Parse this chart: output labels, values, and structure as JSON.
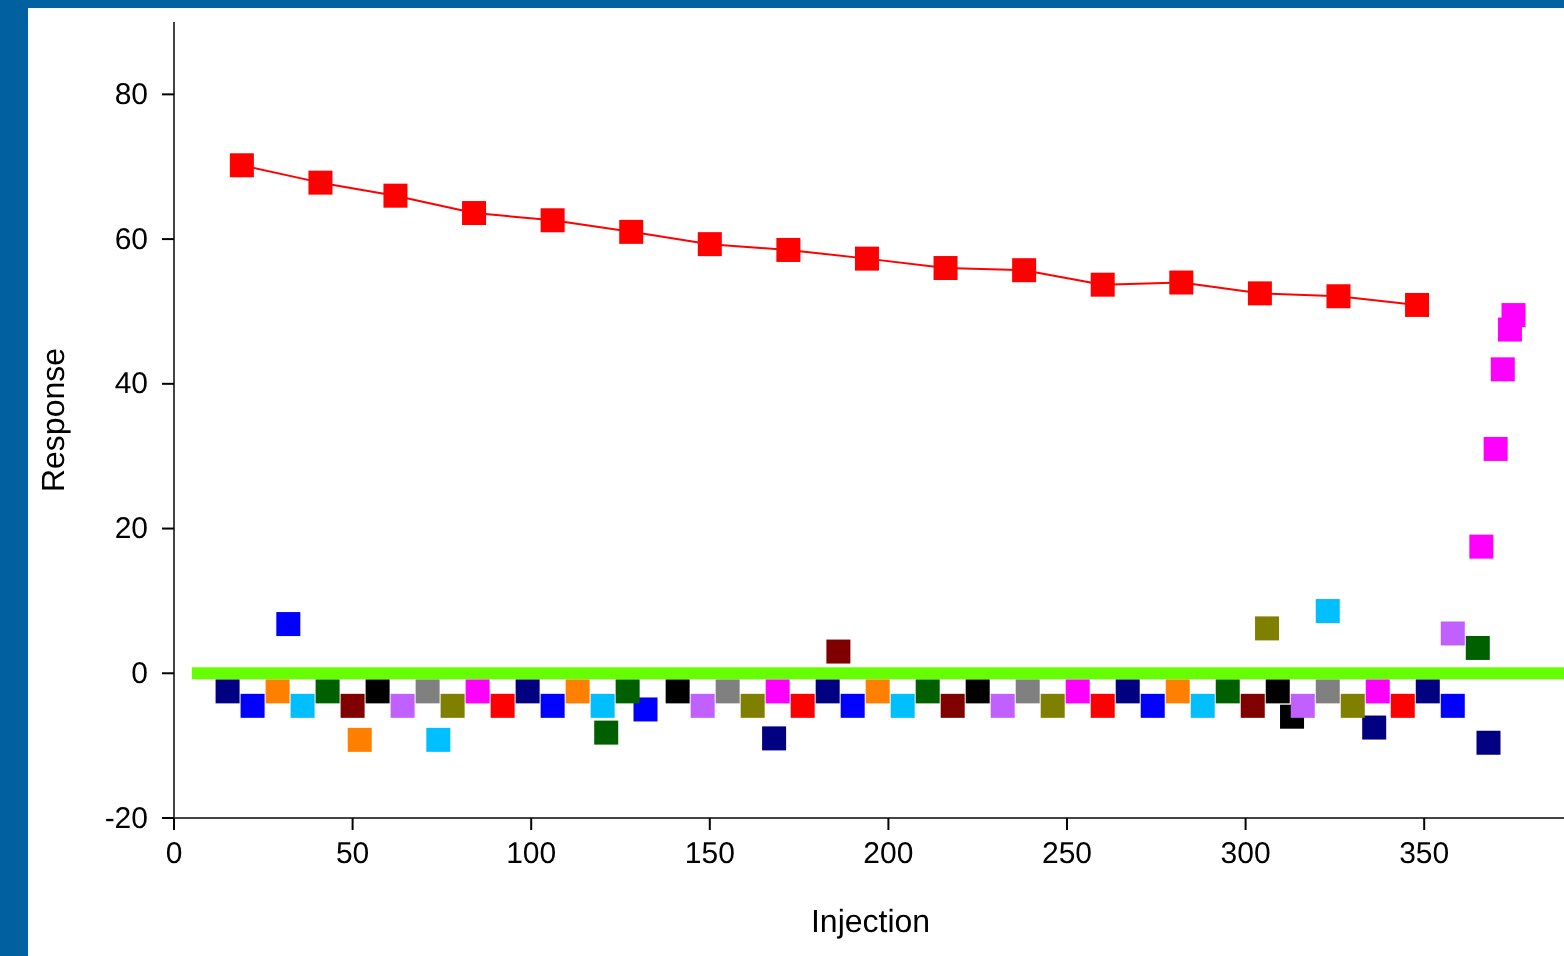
{
  "chart_data": {
    "type": "scatter",
    "xlabel": "Injection",
    "ylabel": "Response",
    "xlim": [
      0,
      390
    ],
    "ylim": [
      -20,
      90
    ],
    "xticks": [
      0,
      50,
      100,
      150,
      200,
      250,
      300,
      350
    ],
    "yticks": [
      -20,
      0,
      20,
      40,
      60,
      80
    ],
    "marker": "square",
    "ref_lines": [
      {
        "axis": "y",
        "value": 0,
        "color": "#66ff00"
      }
    ],
    "series": [
      {
        "type": "line",
        "color": "#ff0000",
        "x": [
          19,
          41,
          62,
          84,
          106,
          128,
          150,
          172,
          194,
          216,
          238,
          260,
          282,
          304,
          326,
          348
        ],
        "values": [
          70.2,
          67.8,
          66,
          63.6,
          62.6,
          61,
          59.3,
          58.5,
          57.3,
          56,
          55.7,
          53.7,
          54,
          52.5,
          52.1,
          50.9
        ]
      },
      {
        "color": "#ff00ff",
        "x": [
          366,
          370,
          372,
          374,
          375
        ],
        "values": [
          17.5,
          31,
          42,
          47.5,
          49.5
        ]
      },
      {
        "color": "#000080",
        "x": [
          15,
          99,
          183,
          267,
          351,
          168,
          336,
          368
        ],
        "values": [
          -2.5,
          -2.5,
          -2.5,
          -2.5,
          -2.5,
          -9,
          -7.5,
          -9.6
        ]
      },
      {
        "color": "#0000ff",
        "x": [
          22,
          106,
          190,
          274,
          358,
          32,
          132
        ],
        "values": [
          -4.5,
          -4.5,
          -4.5,
          -4.5,
          -4.5,
          6.8,
          -5
        ]
      },
      {
        "color": "#ff8000",
        "x": [
          29,
          113,
          197,
          281,
          52
        ],
        "values": [
          -2.5,
          -2.5,
          -2.5,
          -2.5,
          -9.2
        ]
      },
      {
        "color": "#00bfff",
        "x": [
          36,
          120,
          204,
          288,
          74,
          323
        ],
        "values": [
          -4.5,
          -4.5,
          -4.5,
          -4.5,
          -9.2,
          8.6
        ]
      },
      {
        "color": "#006000",
        "x": [
          43,
          127,
          211,
          295,
          121,
          365
        ],
        "values": [
          -2.5,
          -2.5,
          -2.5,
          -2.5,
          -8.2,
          3.5
        ]
      },
      {
        "color": "#800000",
        "x": [
          50,
          218,
          302,
          186
        ],
        "values": [
          -4.5,
          -4.5,
          -4.5,
          3
        ]
      },
      {
        "color": "#000000",
        "x": [
          57,
          141,
          225,
          309,
          313
        ],
        "values": [
          -2.5,
          -2.5,
          -2.5,
          -2.5,
          -6
        ]
      },
      {
        "color": "#c060ff",
        "x": [
          64,
          148,
          232,
          316,
          358
        ],
        "values": [
          -4.5,
          -4.5,
          -4.5,
          -4.5,
          5.5
        ]
      },
      {
        "color": "#808080",
        "x": [
          71,
          155,
          239,
          323
        ],
        "values": [
          -2.5,
          -2.5,
          -2.5,
          -2.5
        ]
      },
      {
        "color": "#808000",
        "x": [
          78,
          162,
          246,
          330,
          306
        ],
        "values": [
          -4.5,
          -4.5,
          -4.5,
          -4.5,
          6.2
        ]
      },
      {
        "color": "#ff00ff",
        "x": [
          85,
          169,
          253,
          337
        ],
        "values": [
          -2.5,
          -2.5,
          -2.5,
          -2.5
        ]
      },
      {
        "color": "#ff0000",
        "x": [
          92,
          176,
          260,
          344
        ],
        "values": [
          -4.5,
          -4.5,
          -4.5,
          -4.5
        ]
      }
    ]
  }
}
